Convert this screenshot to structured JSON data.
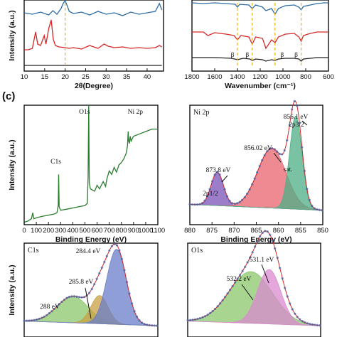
{
  "panel_c_letter": "(c)",
  "chart_data": [
    {
      "id": "xrd",
      "type": "line",
      "xlabel": "2θ(Degree)",
      "ylabel": "Intensity (a.u.)",
      "xlim": [
        10,
        44
      ],
      "xticks": [
        10,
        15,
        20,
        25,
        30,
        35,
        40
      ],
      "marker_x": 20,
      "series": [
        {
          "color": "#2e6da4",
          "baseline": 0.78,
          "x": [
            10,
            12,
            14,
            16,
            17,
            18,
            19,
            19.5,
            20,
            20.5,
            21,
            22,
            24,
            26,
            28,
            30,
            32,
            34,
            36,
            38,
            40,
            42,
            43,
            43.6
          ],
          "y": [
            0.82,
            0.8,
            0.83,
            0.79,
            0.85,
            0.8,
            0.88,
            0.95,
            0.99,
            0.92,
            0.84,
            0.81,
            0.83,
            0.79,
            0.84,
            0.8,
            0.82,
            0.78,
            0.83,
            0.8,
            0.82,
            0.84,
            0.95,
            0.86
          ]
        },
        {
          "color": "#d62728",
          "x": [
            10,
            11,
            12,
            12.8,
            13.3,
            14,
            14.9,
            15.3,
            16,
            16.6,
            17.1,
            17.6,
            18.5,
            20,
            21,
            22,
            24,
            26,
            28,
            29.5,
            30.5,
            32,
            34,
            36,
            38,
            40,
            42,
            43,
            43.6
          ],
          "y": [
            0.3,
            0.3,
            0.32,
            0.55,
            0.38,
            0.36,
            0.5,
            0.38,
            0.6,
            0.72,
            0.45,
            0.36,
            0.34,
            0.33,
            0.32,
            0.33,
            0.31,
            0.36,
            0.32,
            0.38,
            0.35,
            0.33,
            0.34,
            0.32,
            0.33,
            0.32,
            0.33,
            0.36,
            0.34
          ]
        },
        {
          "color": "#222222",
          "x": [
            10,
            15,
            20,
            25,
            30,
            35,
            40,
            43.6
          ],
          "y": [
            0.08,
            0.08,
            0.08,
            0.08,
            0.08,
            0.08,
            0.08,
            0.08
          ]
        }
      ]
    },
    {
      "id": "ftir",
      "type": "line",
      "xlabel": "Wavenumber (cm⁻¹)",
      "xlim": [
        1800,
        600
      ],
      "xticks": [
        1800,
        1600,
        1400,
        1200,
        1000,
        800,
        600
      ],
      "markers": [
        1400,
        1270,
        1070,
        840
      ],
      "marker_label": "β",
      "series": [
        {
          "color": "#2e6da4",
          "x": [
            1800,
            1700,
            1600,
            1500,
            1420,
            1400,
            1380,
            1300,
            1270,
            1240,
            1180,
            1150,
            1100,
            1070,
            1040,
            980,
            900,
            860,
            840,
            820,
            760,
            700,
            640,
            600
          ],
          "y": [
            0.96,
            0.95,
            0.96,
            0.95,
            0.94,
            0.9,
            0.94,
            0.93,
            0.88,
            0.93,
            0.9,
            0.85,
            0.88,
            0.8,
            0.88,
            0.92,
            0.93,
            0.9,
            0.86,
            0.91,
            0.93,
            0.95,
            0.96,
            0.96
          ]
        },
        {
          "color": "#d62728",
          "x": [
            1800,
            1700,
            1660,
            1600,
            1500,
            1430,
            1400,
            1370,
            1300,
            1270,
            1240,
            1180,
            1150,
            1100,
            1070,
            1040,
            980,
            900,
            860,
            840,
            820,
            760,
            700,
            640,
            600
          ],
          "y": [
            0.55,
            0.55,
            0.5,
            0.54,
            0.52,
            0.5,
            0.44,
            0.5,
            0.48,
            0.38,
            0.48,
            0.46,
            0.32,
            0.44,
            0.4,
            0.48,
            0.52,
            0.53,
            0.48,
            0.42,
            0.5,
            0.53,
            0.55,
            0.55,
            0.55
          ]
        },
        {
          "color": "#222222",
          "x": [
            1800,
            1600,
            1450,
            1400,
            1350,
            1290,
            1270,
            1240,
            1180,
            1150,
            1100,
            1070,
            1040,
            980,
            900,
            860,
            840,
            820,
            700,
            600
          ],
          "y": [
            0.19,
            0.19,
            0.18,
            0.16,
            0.18,
            0.17,
            0.15,
            0.17,
            0.16,
            0.14,
            0.16,
            0.15,
            0.17,
            0.18,
            0.18,
            0.17,
            0.14,
            0.17,
            0.19,
            0.19
          ]
        }
      ]
    },
    {
      "id": "survey",
      "type": "line",
      "xlabel": "Binding Energy (eV)",
      "ylabel": "Intensity (a.u.)",
      "xlim": [
        0,
        1100
      ],
      "xticks": [
        0,
        100,
        200,
        300,
        400,
        500,
        600,
        700,
        800,
        900,
        1000,
        1100
      ],
      "peak_labels": [
        {
          "text": "C1s",
          "x": 284
        },
        {
          "text": "O1s",
          "x": 531
        },
        {
          "text": "Ni 2p",
          "x": 856
        }
      ],
      "series": [
        {
          "color": "#2a7d2e",
          "x": [
            0,
            30,
            60,
            70,
            80,
            110,
            150,
            200,
            250,
            270,
            280,
            284,
            288,
            300,
            350,
            400,
            450,
            500,
            520,
            526,
            531,
            536,
            545,
            580,
            600,
            620,
            650,
            670,
            680,
            700,
            720,
            740,
            760,
            780,
            800,
            820,
            840,
            850,
            856,
            860,
            866,
            873,
            880,
            890,
            900,
            950,
            1000,
            1050,
            1100
          ],
          "y": [
            0.02,
            0.03,
            0.05,
            0.1,
            0.05,
            0.06,
            0.07,
            0.08,
            0.09,
            0.1,
            0.16,
            0.42,
            0.15,
            0.12,
            0.13,
            0.14,
            0.15,
            0.16,
            0.18,
            0.4,
            1.0,
            0.35,
            0.3,
            0.28,
            0.33,
            0.3,
            0.36,
            0.32,
            0.38,
            0.45,
            0.42,
            0.48,
            0.44,
            0.5,
            0.52,
            0.55,
            0.6,
            0.66,
            0.78,
            0.7,
            0.68,
            0.74,
            0.7,
            0.72,
            0.74,
            0.76,
            0.78,
            0.8,
            0.8
          ]
        }
      ]
    },
    {
      "id": "ni2p",
      "type": "area",
      "title": "Ni 2p",
      "xlabel": "Binding Energy (eV)",
      "xlim": [
        880,
        850
      ],
      "xticks": [
        880,
        875,
        870,
        865,
        860,
        855,
        850
      ],
      "annotations": [
        {
          "text": "856.1 eV",
          "x": 856.1
        },
        {
          "text": "856.02 eV",
          "x": 861.5
        },
        {
          "text": "sat.",
          "x": 861
        },
        {
          "text": "873.8 eV",
          "x": 873.8
        },
        {
          "text": "2p3/2",
          "x": 856.1
        },
        {
          "text": "2p1/2",
          "x": 873.8
        }
      ],
      "components": [
        {
          "center": 873.8,
          "width": 1.4,
          "height": 0.28,
          "color": "#7b52b8"
        },
        {
          "center": 861.5,
          "width": 3.2,
          "height": 0.5,
          "color": "#e8646e"
        },
        {
          "center": 856.1,
          "width": 1.4,
          "height": 0.78,
          "color": "#4caf86"
        }
      ]
    },
    {
      "id": "c1s",
      "type": "area",
      "title": "C1s",
      "ylabel": "Intensity (a.u.)",
      "xlim": [
        292,
        281
      ],
      "annotations": [
        {
          "text": "284.4 eV",
          "x": 284.4
        },
        {
          "text": "285.8 eV",
          "x": 285.8
        },
        {
          "text": "288 eV",
          "x": 288
        }
      ],
      "components": [
        {
          "center": 288.0,
          "width": 1.3,
          "height": 0.28,
          "color": "#8bc86b"
        },
        {
          "center": 285.8,
          "width": 0.7,
          "height": 0.3,
          "color": "#c9a043"
        },
        {
          "center": 284.4,
          "width": 0.8,
          "height": 0.8,
          "color": "#6a7ec9"
        }
      ]
    },
    {
      "id": "o1s",
      "type": "area",
      "title": "O1s",
      "xlim": [
        536,
        528
      ],
      "annotations": [
        {
          "text": "531.1 eV",
          "x": 531.1
        },
        {
          "text": "532.2 eV",
          "x": 532.2
        }
      ],
      "components": [
        {
          "center": 532.2,
          "width": 1.3,
          "height": 0.55,
          "color": "#8bc86b"
        },
        {
          "center": 531.1,
          "width": 0.7,
          "height": 0.58,
          "color": "#d98ad0"
        }
      ]
    }
  ]
}
